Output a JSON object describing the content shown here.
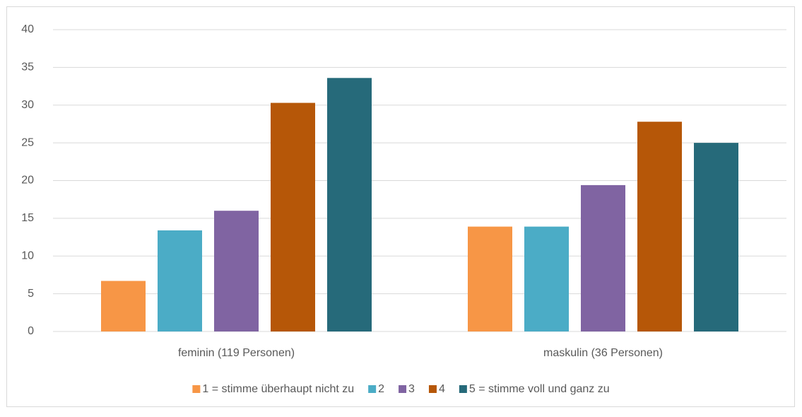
{
  "chart_data": {
    "type": "bar",
    "categories": [
      "feminin (119 Personen)",
      "maskulin (36 Personen)"
    ],
    "series": [
      {
        "name": "1 = stimme überhaupt nicht zu",
        "color": "#f79646",
        "values": [
          6.7,
          13.9
        ]
      },
      {
        "name": "2",
        "color": "#4bacc6",
        "values": [
          13.4,
          13.9
        ]
      },
      {
        "name": "3",
        "color": "#8064a2",
        "values": [
          16.0,
          19.4
        ]
      },
      {
        "name": "4",
        "color": "#b65708",
        "values": [
          30.3,
          27.8
        ]
      },
      {
        "name": "5 = stimme voll und ganz zu",
        "color": "#266a7a",
        "values": [
          33.6,
          25.0
        ]
      }
    ],
    "ylim": [
      0,
      40
    ],
    "yticks": [
      0,
      5,
      10,
      15,
      20,
      25,
      30,
      35,
      40
    ],
    "grid": true,
    "legend": "bottom"
  }
}
